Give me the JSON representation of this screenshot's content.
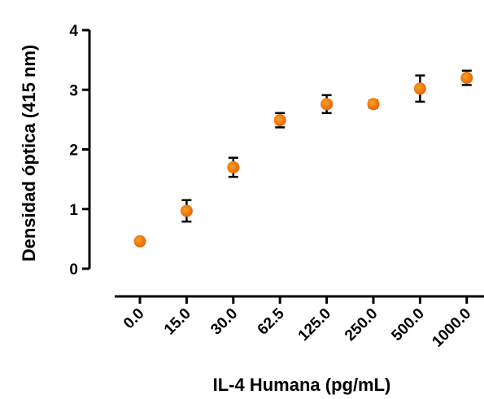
{
  "chart_data": {
    "type": "scatter",
    "xlabel": "IL-4 Humana (pg/mL)",
    "ylabel": "Densidad óptica (415 nm)",
    "categories": [
      "0.0",
      "15.0",
      "30.0",
      "62.5",
      "125.0",
      "250.0",
      "500.0",
      "1000.0"
    ],
    "values": [
      0.46,
      0.97,
      1.7,
      2.49,
      2.76,
      2.76,
      3.02,
      3.2
    ],
    "errors": [
      0.03,
      0.18,
      0.16,
      0.12,
      0.15,
      0.06,
      0.22,
      0.12
    ],
    "ylim": [
      0,
      4
    ],
    "yticks": [
      "0",
      "1",
      "2",
      "3",
      "4"
    ],
    "marker_color": "#e8650c",
    "marker_highlight": "#f7a21c",
    "grid": false
  }
}
